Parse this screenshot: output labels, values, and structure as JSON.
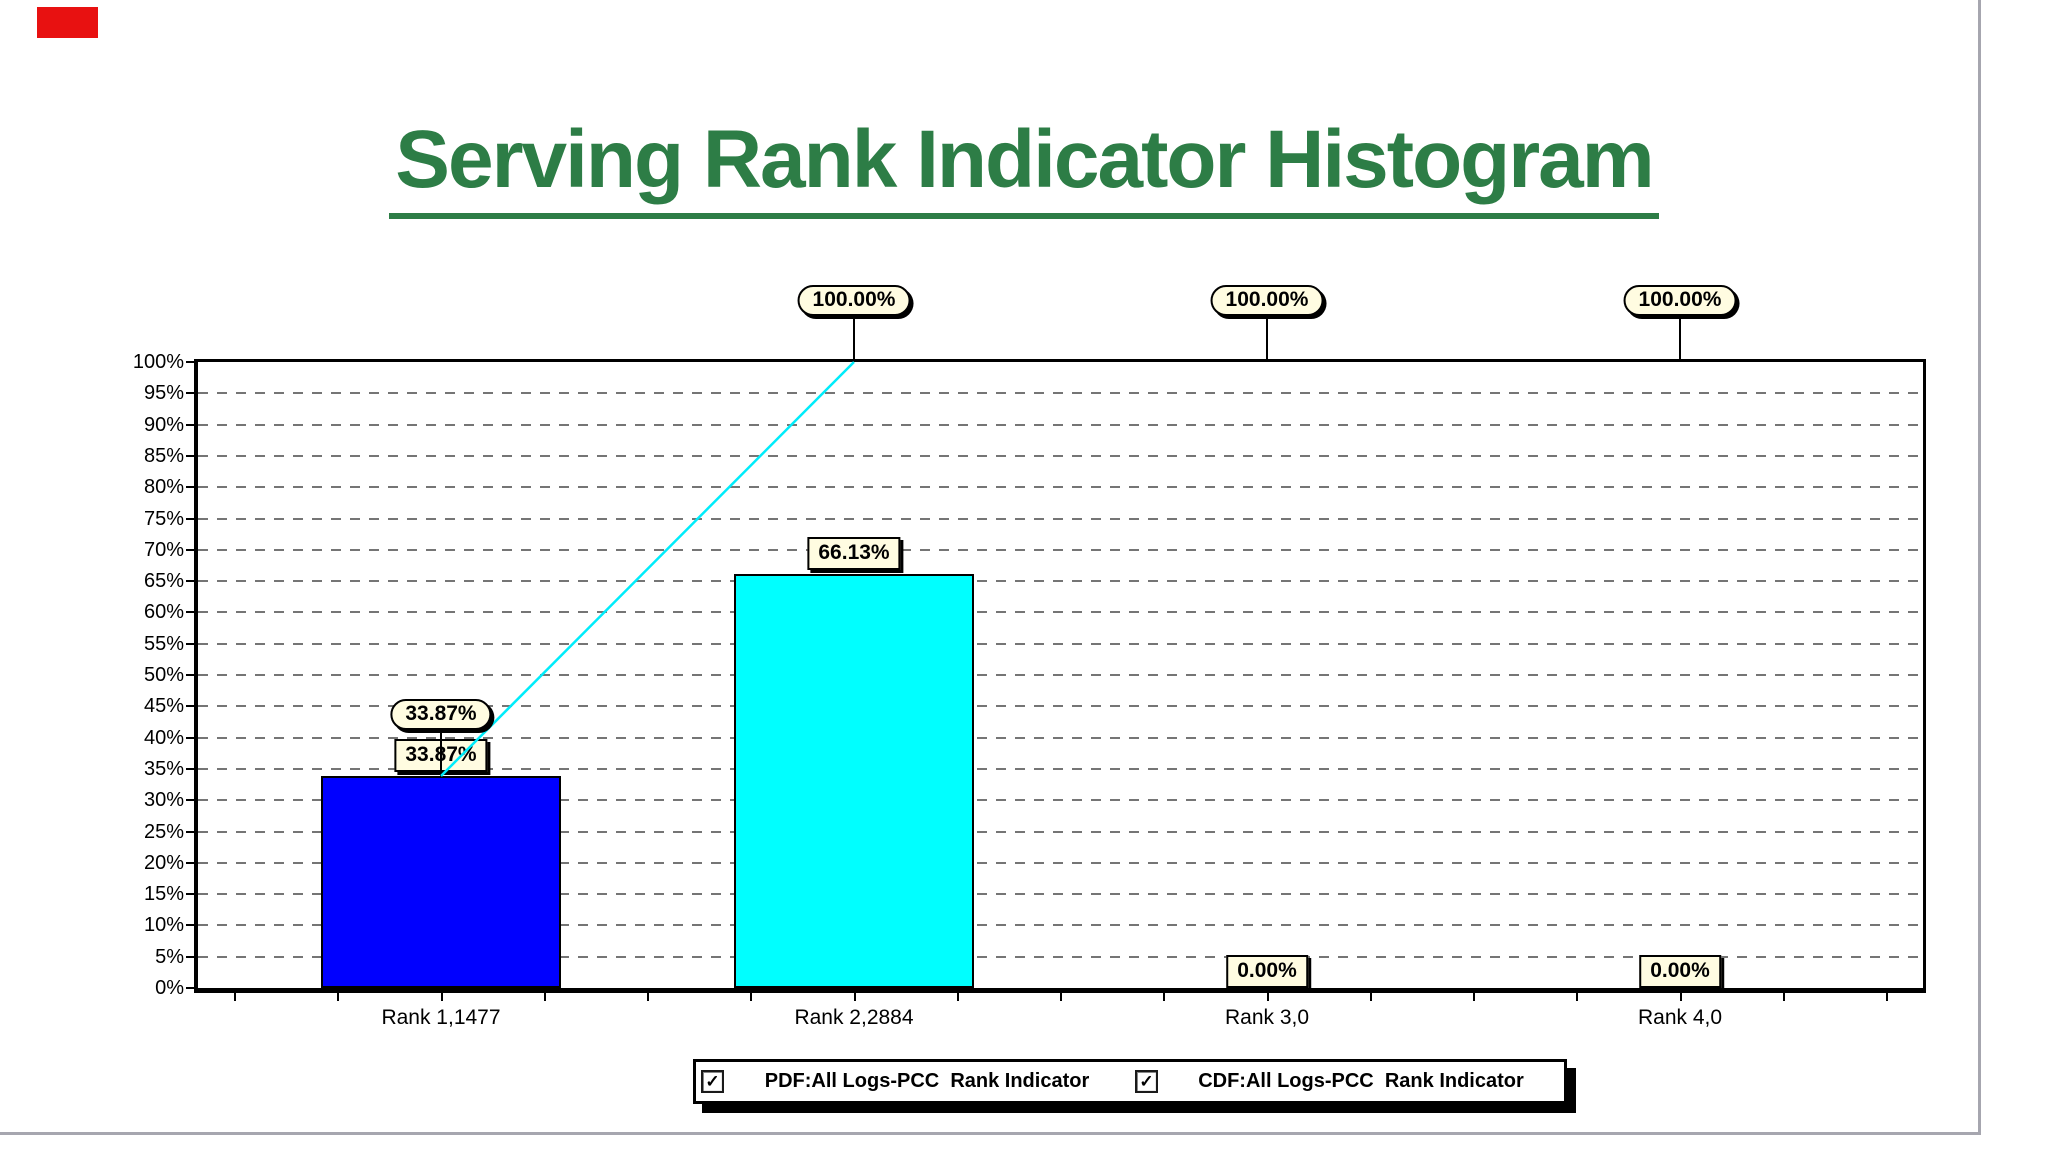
{
  "window": {
    "red_marker_color": "#e81111"
  },
  "title": {
    "text": "Serving Rank Indicator Histogram",
    "color": "#2d7d46"
  },
  "legend": {
    "check_icon": "✓",
    "items": [
      {
        "checked": true,
        "label": "PDF:All Logs-PCC  Rank Indicator"
      },
      {
        "checked": true,
        "label": "CDF:All Logs-PCC  Rank Indicator"
      }
    ]
  },
  "chart_data": {
    "type": "bar",
    "title": "Serving Rank Indicator Histogram",
    "categories": [
      "Rank 1,1477",
      "Rank 2,2884",
      "Rank 3,0",
      "Rank 4,0"
    ],
    "series": [
      {
        "name": "PDF:All Logs-PCC  Rank Indicator",
        "type": "bar",
        "values": [
          33.87,
          66.13,
          0.0,
          0.0
        ],
        "data_labels": [
          "33.87%",
          "66.13%",
          "0.00%",
          "0.00%"
        ],
        "bar_colors": [
          "#0000ff",
          "#00ffff",
          "#0000ff",
          "#00ffff"
        ]
      },
      {
        "name": "CDF:All Logs-PCC  Rank Indicator",
        "type": "line",
        "values": [
          33.87,
          100.0,
          100.0,
          100.0
        ],
        "data_labels": [
          "33.87%",
          "100.00%",
          "100.00%",
          "100.00%"
        ],
        "color": "#00ecfa"
      }
    ],
    "ylim": [
      0,
      100
    ],
    "ytick_step": 5,
    "ytick_suffix": "%",
    "grid": "horizontal-dashed",
    "gridline_color": "#757575",
    "callout_bg": "#fffce1",
    "legend_position": "bottom"
  }
}
